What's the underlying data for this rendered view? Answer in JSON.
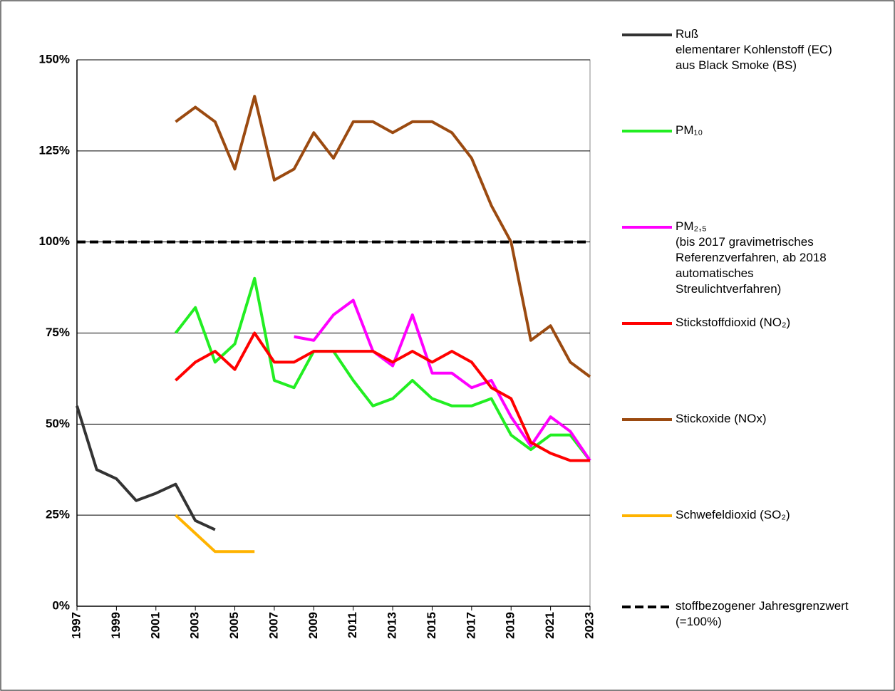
{
  "chart_data": {
    "type": "line",
    "x": [
      1997,
      1998,
      1999,
      2000,
      2001,
      2002,
      2003,
      2004,
      2005,
      2006,
      2007,
      2008,
      2009,
      2010,
      2011,
      2012,
      2013,
      2014,
      2015,
      2016,
      2017,
      2018,
      2019,
      2020,
      2021,
      2022,
      2023
    ],
    "xlim": [
      1997,
      2023
    ],
    "xticks": [
      1997,
      1999,
      2001,
      2003,
      2005,
      2007,
      2009,
      2011,
      2013,
      2015,
      2017,
      2019,
      2021,
      2023
    ],
    "ylim": [
      0,
      150
    ],
    "yticks": [
      {
        "value": 0,
        "label": "0%"
      },
      {
        "value": 25,
        "label": "25%"
      },
      {
        "value": 50,
        "label": "50%"
      },
      {
        "value": 75,
        "label": "75%"
      },
      {
        "value": 100,
        "label": "100%"
      },
      {
        "value": 125,
        "label": "125%"
      },
      {
        "value": 150,
        "label": "150%"
      }
    ],
    "grid": true,
    "series": [
      {
        "name": "Ruß",
        "note": "elementarer Kohlenstoff (EC) aus Black Smoke (BS)",
        "color": "#333333",
        "values": [
          55,
          37.5,
          35,
          29,
          31,
          33.5,
          23.5,
          21,
          null,
          null,
          null,
          null,
          null,
          null,
          null,
          null,
          null,
          null,
          null,
          null,
          null,
          null,
          null,
          null,
          null,
          null,
          null
        ]
      },
      {
        "name": "PM₁₀",
        "color": "#22ee22",
        "values": [
          null,
          null,
          null,
          null,
          null,
          75,
          82,
          67,
          72,
          90,
          62,
          60,
          70,
          70,
          62,
          55,
          57,
          62,
          57,
          55,
          55,
          57,
          47,
          43,
          47,
          47,
          40
        ]
      },
      {
        "name": "PM₂,₅",
        "note": "(bis 2017 gravimetrisches Referenzverfahren, ab 2018 automatisches Streulichtverfahren)",
        "color": "#ff00ff",
        "values": [
          null,
          null,
          null,
          null,
          null,
          null,
          null,
          null,
          null,
          null,
          null,
          74,
          73,
          80,
          84,
          70,
          66,
          80,
          64,
          64,
          60,
          62,
          52,
          44,
          52,
          48,
          40
        ]
      },
      {
        "name": "Stickstoffdioxid (NO₂)",
        "color": "#ff0000",
        "values": [
          null,
          null,
          null,
          null,
          null,
          62,
          67,
          70,
          65,
          75,
          67,
          67,
          70,
          70,
          70,
          70,
          67,
          70,
          67,
          70,
          67,
          60,
          57,
          45,
          42,
          40,
          40
        ]
      },
      {
        "name": "Stickoxide (NOx)",
        "color": "#9b4a10",
        "values": [
          null,
          null,
          null,
          null,
          null,
          133,
          137,
          133,
          120,
          140,
          117,
          120,
          130,
          123,
          133,
          133,
          130,
          133,
          133,
          130,
          123,
          110,
          100,
          73,
          77,
          67,
          63
        ]
      },
      {
        "name": "Schwefeldioxid (SO₂)",
        "color": "#ffb300",
        "values": [
          null,
          null,
          null,
          null,
          null,
          25,
          20,
          15,
          15,
          15,
          null,
          null,
          null,
          null,
          null,
          null,
          null,
          null,
          null,
          null,
          null,
          null,
          null,
          null,
          null,
          null,
          null
        ]
      }
    ],
    "threshold": {
      "name": "stoffbezogener Jahresgrenzwert (=100%)",
      "value": 100,
      "color": "#000000"
    }
  }
}
